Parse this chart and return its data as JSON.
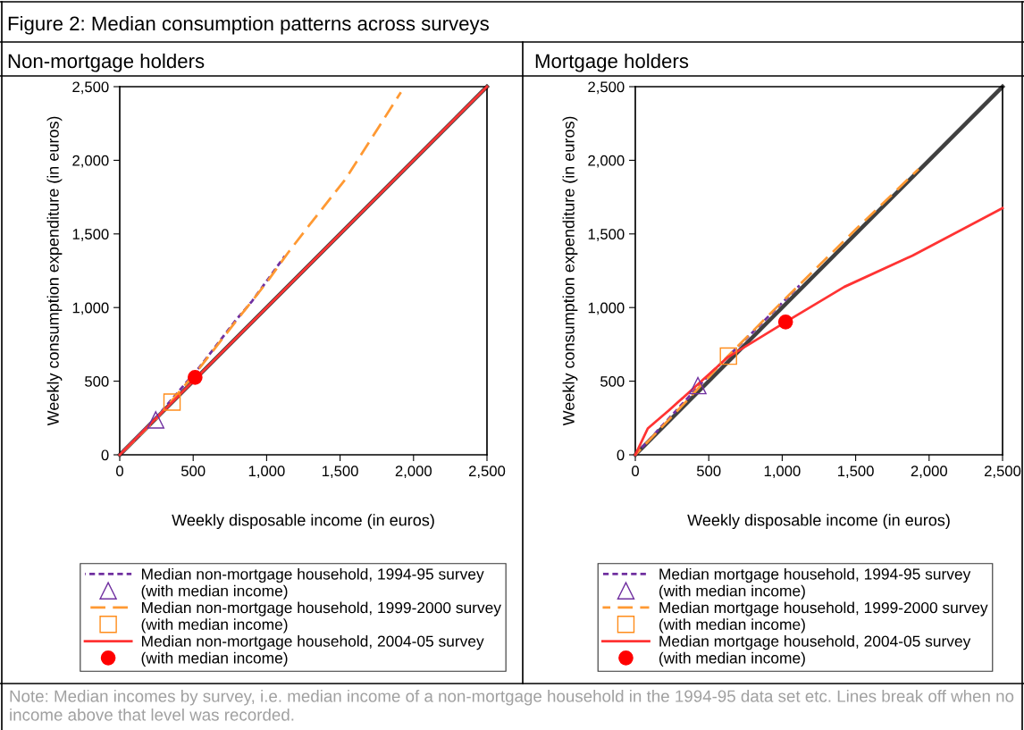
{
  "chart_data": [
    {
      "type": "line",
      "title": "Figure 2: Median consumption patterns across surveys",
      "subtitle": "Non-mortgage holders",
      "xlabel": "Weekly disposable income (in euros)",
      "ylabel": "Weekly consumption expenditure (in euros)",
      "xlim": [
        0,
        2500
      ],
      "ylim": [
        0,
        2500
      ],
      "xticks": [
        0,
        500,
        {
          "value": 1000,
          "label": "1,000"
        },
        {
          "value": 1500,
          "label": "1,500"
        },
        {
          "value": 2000,
          "label": "2,000"
        },
        {
          "value": 2500,
          "label": "2,500"
        }
      ],
      "yticks": [
        0,
        500,
        {
          "value": 1000,
          "label": "1,000"
        },
        {
          "value": 1500,
          "label": "1,500"
        },
        {
          "value": 2000,
          "label": "2,000"
        },
        {
          "value": 2500,
          "label": "2,500"
        }
      ],
      "grid": false,
      "legend": "bottom",
      "annotations": [
        "Note: Median incomes by survey, i.e. median income of a non-mortgage household in the 1994-95 data set etc. Lines break off when no income above that level was recorded."
      ],
      "series": [
        {
          "color": "#404040",
          "line_style": "solid",
          "x": [
            0,
            2500
          ],
          "values": [
            0,
            2500
          ]
        },
        {
          "name": "Median non-mortgage household, 1994-95 survey",
          "color": "#7030a0",
          "line_style": "dotted",
          "x": [
            0,
            250,
            548,
            790,
            902,
            1123
          ],
          "values": [
            0,
            255,
            601,
            914,
            1045,
            1349
          ]
        },
        {
          "type": "scatter",
          "name": "(with median income)",
          "color": "#7030a0",
          "marker": "triangle",
          "x": [
            245
          ],
          "values": [
            237
          ]
        },
        {
          "name": "Median non-mortgage household, 1999-2000 survey",
          "color": "#ff9933",
          "line_style": "dashed",
          "x": [
            0,
            250,
            548,
            790,
            1000,
            1144,
            1276,
            1539,
            1914
          ],
          "values": [
            0,
            245,
            595,
            905,
            1170,
            1370,
            1541,
            1875,
            2462
          ]
        },
        {
          "type": "scatter",
          "name": "(with median income)",
          "color": "#ff8c1a",
          "marker": "square",
          "x": [
            356
          ],
          "values": [
            358
          ]
        },
        {
          "name": "Median non-mortgage household, 2004-05 survey",
          "color": "#ff3333",
          "line_style": "solid",
          "x": [
            0,
            2500
          ],
          "values": [
            0,
            2500
          ]
        },
        {
          "type": "scatter",
          "name": "(with median income)",
          "color": "#ff0000",
          "marker": "circle",
          "x": [
            513
          ],
          "values": [
            526
          ]
        }
      ]
    },
    {
      "type": "line",
      "subtitle": "Mortgage holders",
      "xlabel": "Weekly disposable income (in euros)",
      "ylabel": "Weekly consumption expenditure (in euros)",
      "xlim": [
        0,
        2500
      ],
      "ylim": [
        0,
        2500
      ],
      "xticks": [
        0,
        500,
        {
          "value": 1000,
          "label": "1,000"
        },
        {
          "value": 1500,
          "label": "1,500"
        },
        {
          "value": 2000,
          "label": "2,000"
        },
        {
          "value": 2500,
          "label": "2,500"
        }
      ],
      "yticks": [
        0,
        500,
        {
          "value": 1000,
          "label": "1,000"
        },
        {
          "value": 1500,
          "label": "1,500"
        },
        {
          "value": 2000,
          "label": "2,000"
        },
        {
          "value": 2500,
          "label": "2,500"
        }
      ],
      "grid": false,
      "legend": "bottom",
      "series": [
        {
          "color": "#404040",
          "line_style": "solid",
          "x": [
            0,
            2500
          ],
          "values": [
            0,
            2500
          ]
        },
        {
          "name": "Median mortgage household, 1994-95 survey",
          "color": "#7030a0",
          "line_style": "dotted",
          "x": [
            0,
            500,
            814,
            1118
          ],
          "values": [
            0,
            540,
            847,
            1150
          ]
        },
        {
          "type": "scatter",
          "name": "(with median income)",
          "color": "#7030a0",
          "marker": "triangle",
          "x": [
            426
          ],
          "values": [
            470
          ]
        },
        {
          "name": "Median mortgage household, 1999-2000 survey",
          "color": "#ff9933",
          "line_style": "dashed",
          "x": [
            0,
            330,
            640,
            1000,
            1500,
            1928
          ],
          "values": [
            0,
            345,
            680,
            1040,
            1530,
            1940
          ]
        },
        {
          "type": "scatter",
          "name": "(with median income)",
          "color": "#ff8c1a",
          "marker": "square",
          "x": [
            634
          ],
          "values": [
            670
          ]
        },
        {
          "name": "Median mortgage household, 2004-05 survey",
          "color": "#ff3333",
          "line_style": "solid",
          "x": [
            0,
            85,
            227,
            430,
            632,
            1023,
            1422,
            1888,
            2500
          ],
          "values": [
            0,
            179,
            300,
            482,
            664,
            902,
            1140,
            1353,
            1675
          ]
        },
        {
          "type": "scatter",
          "name": "(with median income)",
          "color": "#ff0000",
          "marker": "circle",
          "x": [
            1023
          ],
          "values": [
            902
          ]
        }
      ]
    }
  ]
}
